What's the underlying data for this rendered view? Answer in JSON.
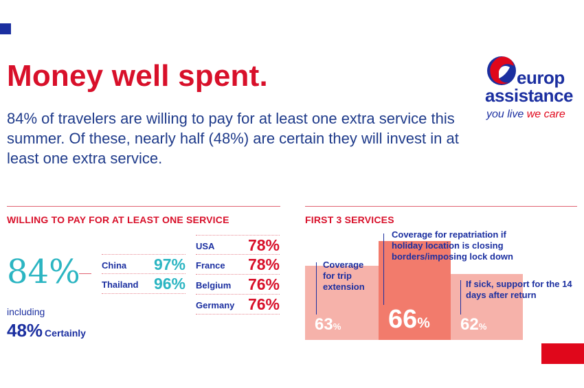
{
  "headline": "Money well spent.",
  "intro": "84% of travelers are willing to pay for at least one extra service this summer. Of these, nearly half (48%) are certain they will invest in at least one extra service.",
  "logo": {
    "word1": "europ",
    "word2": "assistance",
    "tagline_part1": "you live ",
    "tagline_part2": "we care"
  },
  "willing": {
    "section_title": "WILLING TO PAY FOR AT LEAST ONE SERVICE",
    "overall": "84%",
    "including": "including",
    "certainly_value": "48%",
    "certainly_label": "Certainly",
    "asia": [
      {
        "country": "China",
        "value": "97%"
      },
      {
        "country": "Thailand",
        "value": "96%"
      }
    ],
    "europe_us": [
      {
        "country": "USA",
        "value": "78%"
      },
      {
        "country": "France",
        "value": "78%"
      },
      {
        "country": "Belgium",
        "value": "76%"
      },
      {
        "country": "Germany",
        "value": "76%"
      }
    ]
  },
  "services": {
    "section_title": "FIRST 3 SERVICES",
    "items": [
      {
        "label": "Coverage for trip extension",
        "value": 63,
        "display": "63",
        "pct": "%"
      },
      {
        "label": "Coverage for repatriation if holiday location is closing borders/imposing lock down",
        "value": 66,
        "display": "66",
        "pct": "%"
      },
      {
        "label": "If sick, support for the 14 days after return",
        "value": 62,
        "display": "62",
        "pct": "%"
      }
    ]
  },
  "colors": {
    "red": "#d8102a",
    "navy": "#1b2fa0",
    "teal": "#2bb5c2",
    "bar_light": "#f6b2aa",
    "bar_dark": "#f27b6c"
  }
}
